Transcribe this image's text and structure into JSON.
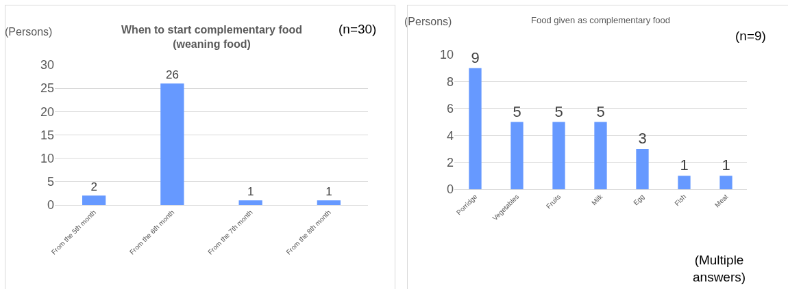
{
  "chart_data": [
    {
      "type": "bar",
      "title": "When to start complementary food\n(weaning food)",
      "ylabel": "(Persons)",
      "categories": [
        "From the 5th month",
        "From the 6th month",
        "From the 7th month",
        "From the 8th month"
      ],
      "values": [
        2,
        26,
        1,
        1
      ],
      "color": "#6699ff",
      "ylim": [
        0,
        30
      ],
      "yticks": [
        0,
        5,
        10,
        15,
        20,
        25,
        30
      ],
      "grid": "y",
      "data_labels": true,
      "legend": false,
      "annotations": [
        "(n=30)"
      ]
    },
    {
      "type": "bar",
      "title": "Food given as complementary food",
      "ylabel": "(Persons)",
      "categories": [
        "Porridge",
        "Vegetables",
        "Fruits",
        "Milk",
        "Egg",
        "Fish",
        "Meat"
      ],
      "values": [
        9,
        5,
        5,
        5,
        3,
        1,
        1
      ],
      "color": "#6699ff",
      "ylim": [
        0,
        10
      ],
      "yticks": [
        0,
        2,
        4,
        6,
        8,
        10
      ],
      "grid": "y",
      "data_labels": true,
      "legend": false,
      "annotations": [
        "(n=9)",
        "(Multiple\nanswers)"
      ]
    }
  ]
}
